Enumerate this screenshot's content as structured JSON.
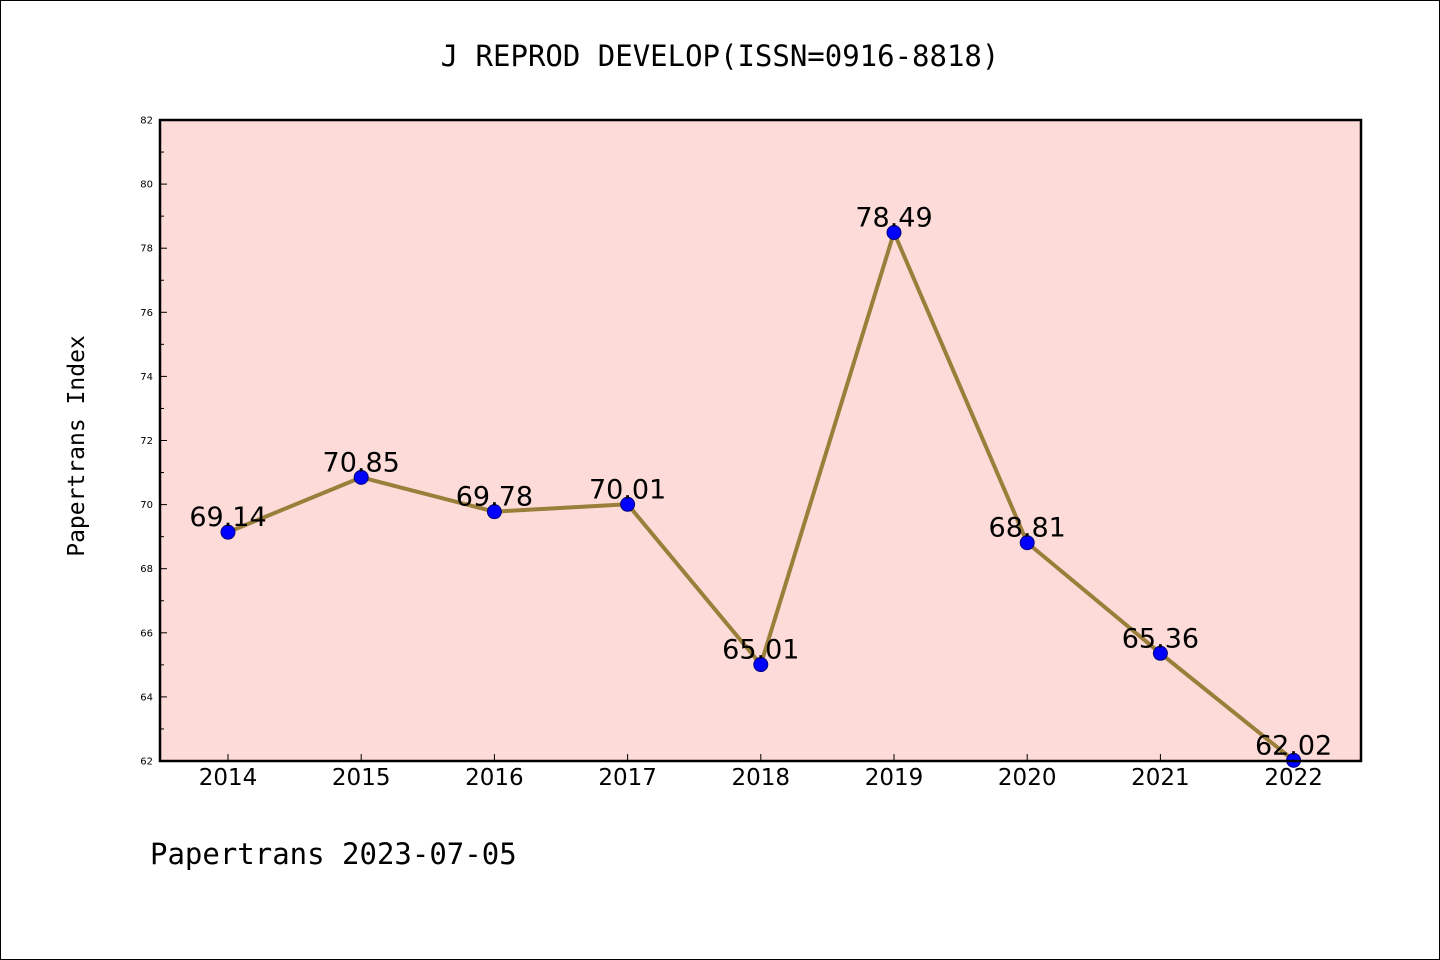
{
  "chart_data": {
    "type": "line",
    "title": "J REPROD DEVELOP(ISSN=0916-8818)",
    "xlabel": "",
    "ylabel": "Papertrans Index",
    "footer": "Papertrans 2023-07-05",
    "categories": [
      "2014",
      "2015",
      "2016",
      "2017",
      "2018",
      "2019",
      "2020",
      "2021",
      "2022"
    ],
    "values": [
      69.14,
      70.85,
      69.78,
      70.01,
      65.01,
      78.49,
      68.81,
      65.36,
      62.02
    ],
    "data_labels": [
      "69.14",
      "70.85",
      "69.78",
      "70.01",
      "65.01",
      "78.49",
      "68.81",
      "65.36",
      "62.02"
    ],
    "ylim": [
      62,
      82
    ],
    "yticks": [
      "62",
      "64",
      "66",
      "68",
      "70",
      "72",
      "74",
      "76",
      "78",
      "80",
      "82"
    ],
    "grid": false,
    "colors": {
      "plot_background": "#fddbd8",
      "line": "#9a7f3a",
      "marker": "#0000ff",
      "axes": "#000000"
    }
  }
}
